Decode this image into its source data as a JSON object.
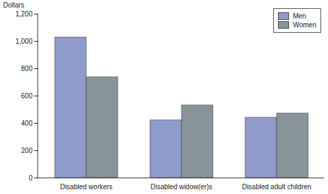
{
  "chart_data": {
    "type": "bar",
    "ylabel": "Dollars",
    "categories": [
      "Disabled workers",
      "Disabled widow(er)s",
      "Disabled adult children"
    ],
    "series": [
      {
        "name": "Men",
        "color": "#8e9bcb",
        "values": [
          1029,
          422,
          441
        ]
      },
      {
        "name": "Women",
        "color": "#87949a",
        "values": [
          737,
          531,
          472
        ]
      }
    ],
    "ylim": [
      0,
      1200
    ],
    "yticks": [
      0,
      200,
      400,
      600,
      800,
      {
        "value": 1000,
        "label": "1,000"
      },
      {
        "value": 1200,
        "label": "1,200"
      }
    ],
    "legend": "top-right",
    "grid": false
  }
}
